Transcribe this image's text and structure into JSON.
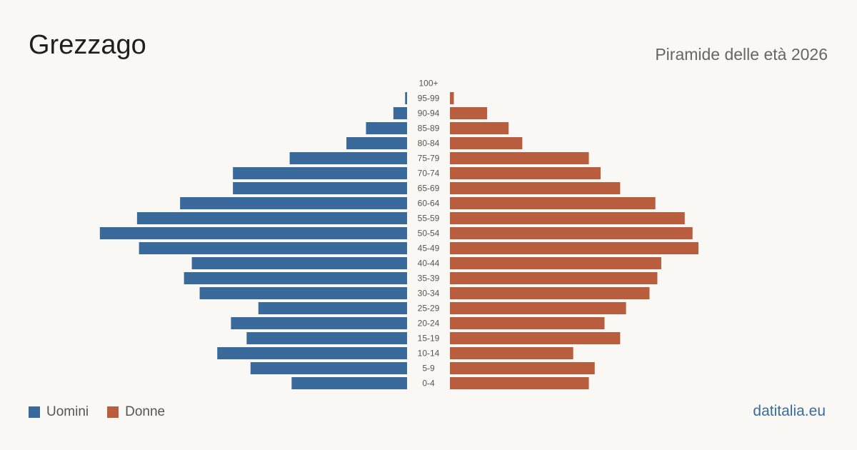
{
  "header": {
    "title": "Grezzago",
    "subtitle": "Piramide delle età 2026"
  },
  "legend": {
    "men_label": "Uomini",
    "women_label": "Donne"
  },
  "brand": "datitalia.eu",
  "colors": {
    "men": "#3a6a9c",
    "women": "#b85e3e"
  },
  "chart_data": {
    "type": "bar",
    "orientation": "horizontal-pyramid",
    "categories": [
      "100+",
      "95-99",
      "90-94",
      "85-89",
      "80-84",
      "75-79",
      "70-74",
      "65-69",
      "60-64",
      "55-59",
      "50-54",
      "45-49",
      "40-44",
      "35-39",
      "30-34",
      "25-29",
      "20-24",
      "15-19",
      "10-14",
      "5-9",
      "0-4"
    ],
    "series": [
      {
        "name": "Uomini",
        "values": [
          0,
          1,
          7,
          21,
          31,
          60,
          89,
          89,
          116,
          138,
          157,
          137,
          110,
          114,
          106,
          76,
          90,
          82,
          97,
          80,
          59
        ]
      },
      {
        "name": "Donne",
        "values": [
          0,
          2,
          19,
          30,
          37,
          71,
          77,
          87,
          105,
          120,
          124,
          127,
          108,
          106,
          102,
          90,
          79,
          87,
          63,
          74,
          71
        ]
      }
    ],
    "xlim": [
      0,
      160
    ],
    "grid": false,
    "legend_position": "bottom-left"
  }
}
